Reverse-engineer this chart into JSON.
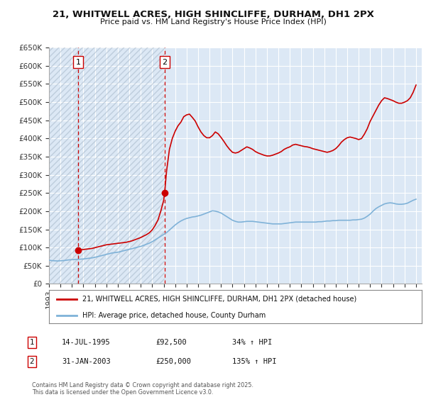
{
  "title_line1": "21, WHITWELL ACRES, HIGH SHINCLIFFE, DURHAM, DH1 2PX",
  "title_line2": "Price paid vs. HM Land Registry's House Price Index (HPI)",
  "ylim": [
    0,
    650000
  ],
  "yticks": [
    0,
    50000,
    100000,
    150000,
    200000,
    250000,
    300000,
    350000,
    400000,
    450000,
    500000,
    550000,
    600000,
    650000
  ],
  "ytick_labels": [
    "£0",
    "£50K",
    "£100K",
    "£150K",
    "£200K",
    "£250K",
    "£300K",
    "£350K",
    "£400K",
    "£450K",
    "£500K",
    "£550K",
    "£600K",
    "£650K"
  ],
  "background_color": "#ffffff",
  "plot_bg_color": "#dce8f5",
  "grid_color": "#ffffff",
  "hpi_color": "#7fb2d8",
  "price_color": "#cc0000",
  "hatch_color": "#c8d8e8",
  "sale1_date": 1995.54,
  "sale1_price": 92500,
  "sale2_date": 2003.08,
  "sale2_price": 250000,
  "legend_label1": "21, WHITWELL ACRES, HIGH SHINCLIFFE, DURHAM, DH1 2PX (detached house)",
  "legend_label2": "HPI: Average price, detached house, County Durham",
  "table_row1": [
    "1",
    "14-JUL-1995",
    "£92,500",
    "34% ↑ HPI"
  ],
  "table_row2": [
    "2",
    "31-JAN-2003",
    "£250,000",
    "135% ↑ HPI"
  ],
  "footnote": "Contains HM Land Registry data © Crown copyright and database right 2025.\nThis data is licensed under the Open Government Licence v3.0.",
  "xmin": 1993.0,
  "xmax": 2025.5,
  "hpi_data": [
    [
      1993.0,
      65000
    ],
    [
      1993.25,
      64000
    ],
    [
      1993.5,
      63500
    ],
    [
      1993.75,
      63000
    ],
    [
      1994.0,
      63500
    ],
    [
      1994.25,
      64000
    ],
    [
      1994.5,
      65000
    ],
    [
      1994.75,
      66000
    ],
    [
      1995.0,
      66500
    ],
    [
      1995.25,
      67000
    ],
    [
      1995.5,
      67500
    ],
    [
      1995.75,
      68000
    ],
    [
      1996.0,
      68500
    ],
    [
      1996.25,
      69500
    ],
    [
      1996.5,
      70500
    ],
    [
      1996.75,
      71500
    ],
    [
      1997.0,
      73000
    ],
    [
      1997.25,
      75000
    ],
    [
      1997.5,
      77000
    ],
    [
      1997.75,
      79000
    ],
    [
      1998.0,
      81000
    ],
    [
      1998.25,
      83000
    ],
    [
      1998.5,
      85000
    ],
    [
      1998.75,
      86000
    ],
    [
      1999.0,
      87000
    ],
    [
      1999.25,
      89000
    ],
    [
      1999.5,
      91000
    ],
    [
      1999.75,
      93000
    ],
    [
      2000.0,
      95000
    ],
    [
      2000.25,
      97000
    ],
    [
      2000.5,
      99000
    ],
    [
      2000.75,
      101000
    ],
    [
      2001.0,
      103000
    ],
    [
      2001.25,
      106000
    ],
    [
      2001.5,
      109000
    ],
    [
      2001.75,
      112000
    ],
    [
      2002.0,
      116000
    ],
    [
      2002.25,
      121000
    ],
    [
      2002.5,
      126000
    ],
    [
      2002.75,
      131000
    ],
    [
      2003.0,
      136000
    ],
    [
      2003.25,
      141000
    ],
    [
      2003.5,
      148000
    ],
    [
      2003.75,
      155000
    ],
    [
      2004.0,
      162000
    ],
    [
      2004.25,
      168000
    ],
    [
      2004.5,
      173000
    ],
    [
      2004.75,
      177000
    ],
    [
      2005.0,
      180000
    ],
    [
      2005.25,
      182000
    ],
    [
      2005.5,
      184000
    ],
    [
      2005.75,
      185000
    ],
    [
      2006.0,
      187000
    ],
    [
      2006.25,
      189000
    ],
    [
      2006.5,
      192000
    ],
    [
      2006.75,
      195000
    ],
    [
      2007.0,
      198000
    ],
    [
      2007.25,
      201000
    ],
    [
      2007.5,
      200000
    ],
    [
      2007.75,
      198000
    ],
    [
      2008.0,
      195000
    ],
    [
      2008.25,
      190000
    ],
    [
      2008.5,
      185000
    ],
    [
      2008.75,
      180000
    ],
    [
      2009.0,
      175000
    ],
    [
      2009.25,
      172000
    ],
    [
      2009.5,
      170000
    ],
    [
      2009.75,
      170000
    ],
    [
      2010.0,
      171000
    ],
    [
      2010.25,
      172000
    ],
    [
      2010.5,
      172000
    ],
    [
      2010.75,
      172000
    ],
    [
      2011.0,
      171000
    ],
    [
      2011.25,
      170000
    ],
    [
      2011.5,
      169000
    ],
    [
      2011.75,
      168000
    ],
    [
      2012.0,
      167000
    ],
    [
      2012.25,
      166000
    ],
    [
      2012.5,
      165000
    ],
    [
      2012.75,
      165000
    ],
    [
      2013.0,
      165000
    ],
    [
      2013.25,
      165000
    ],
    [
      2013.5,
      166000
    ],
    [
      2013.75,
      167000
    ],
    [
      2014.0,
      168000
    ],
    [
      2014.25,
      169000
    ],
    [
      2014.5,
      170000
    ],
    [
      2014.75,
      170000
    ],
    [
      2015.0,
      170000
    ],
    [
      2015.25,
      170000
    ],
    [
      2015.5,
      170000
    ],
    [
      2015.75,
      170000
    ],
    [
      2016.0,
      170000
    ],
    [
      2016.25,
      170000
    ],
    [
      2016.5,
      171000
    ],
    [
      2016.75,
      171000
    ],
    [
      2017.0,
      172000
    ],
    [
      2017.25,
      173000
    ],
    [
      2017.5,
      173000
    ],
    [
      2017.75,
      174000
    ],
    [
      2018.0,
      174000
    ],
    [
      2018.25,
      175000
    ],
    [
      2018.5,
      175000
    ],
    [
      2018.75,
      175000
    ],
    [
      2019.0,
      175000
    ],
    [
      2019.25,
      175000
    ],
    [
      2019.5,
      176000
    ],
    [
      2019.75,
      176000
    ],
    [
      2020.0,
      177000
    ],
    [
      2020.25,
      178000
    ],
    [
      2020.5,
      181000
    ],
    [
      2020.75,
      186000
    ],
    [
      2021.0,
      192000
    ],
    [
      2021.25,
      200000
    ],
    [
      2021.5,
      207000
    ],
    [
      2021.75,
      212000
    ],
    [
      2022.0,
      216000
    ],
    [
      2022.25,
      220000
    ],
    [
      2022.5,
      222000
    ],
    [
      2022.75,
      223000
    ],
    [
      2023.0,
      222000
    ],
    [
      2023.25,
      220000
    ],
    [
      2023.5,
      219000
    ],
    [
      2023.75,
      219000
    ],
    [
      2024.0,
      220000
    ],
    [
      2024.25,
      222000
    ],
    [
      2024.5,
      226000
    ],
    [
      2024.75,
      230000
    ],
    [
      2025.0,
      233000
    ]
  ],
  "price_data": [
    [
      1995.54,
      92500
    ],
    [
      1995.75,
      93500
    ],
    [
      1996.0,
      94500
    ],
    [
      1996.25,
      95500
    ],
    [
      1996.5,
      96500
    ],
    [
      1996.75,
      97500
    ],
    [
      1997.0,
      99500
    ],
    [
      1997.25,
      101500
    ],
    [
      1997.5,
      103500
    ],
    [
      1997.75,
      105500
    ],
    [
      1998.0,
      107500
    ],
    [
      1998.25,
      108500
    ],
    [
      1998.5,
      109500
    ],
    [
      1998.75,
      110500
    ],
    [
      1999.0,
      111500
    ],
    [
      1999.25,
      112500
    ],
    [
      1999.5,
      113500
    ],
    [
      1999.75,
      114500
    ],
    [
      2000.0,
      116500
    ],
    [
      2000.25,
      118500
    ],
    [
      2000.5,
      121500
    ],
    [
      2000.75,
      124500
    ],
    [
      2001.0,
      127500
    ],
    [
      2001.25,
      131500
    ],
    [
      2001.5,
      135500
    ],
    [
      2001.75,
      140500
    ],
    [
      2002.0,
      148500
    ],
    [
      2002.25,
      160500
    ],
    [
      2002.5,
      175500
    ],
    [
      2002.75,
      200500
    ],
    [
      2003.0,
      230000
    ],
    [
      2003.08,
      250000
    ],
    [
      2003.25,
      310000
    ],
    [
      2003.5,
      370000
    ],
    [
      2003.75,
      400000
    ],
    [
      2004.0,
      420000
    ],
    [
      2004.25,
      435000
    ],
    [
      2004.5,
      445000
    ],
    [
      2004.75,
      460000
    ],
    [
      2005.0,
      465000
    ],
    [
      2005.25,
      467000
    ],
    [
      2005.5,
      458000
    ],
    [
      2005.75,
      448000
    ],
    [
      2006.0,
      432000
    ],
    [
      2006.25,
      418000
    ],
    [
      2006.5,
      408000
    ],
    [
      2006.75,
      402000
    ],
    [
      2007.0,
      402000
    ],
    [
      2007.25,
      408000
    ],
    [
      2007.5,
      418000
    ],
    [
      2007.75,
      413000
    ],
    [
      2008.0,
      403000
    ],
    [
      2008.25,
      392000
    ],
    [
      2008.5,
      380000
    ],
    [
      2008.75,
      370000
    ],
    [
      2009.0,
      362000
    ],
    [
      2009.25,
      360000
    ],
    [
      2009.5,
      362000
    ],
    [
      2009.75,
      367000
    ],
    [
      2010.0,
      372000
    ],
    [
      2010.25,
      377000
    ],
    [
      2010.5,
      374000
    ],
    [
      2010.75,
      370000
    ],
    [
      2011.0,
      364000
    ],
    [
      2011.25,
      360000
    ],
    [
      2011.5,
      357000
    ],
    [
      2011.75,
      354000
    ],
    [
      2012.0,
      352000
    ],
    [
      2012.25,
      352000
    ],
    [
      2012.5,
      354000
    ],
    [
      2012.75,
      357000
    ],
    [
      2013.0,
      360000
    ],
    [
      2013.25,
      364000
    ],
    [
      2013.5,
      370000
    ],
    [
      2013.75,
      374000
    ],
    [
      2014.0,
      377000
    ],
    [
      2014.25,
      382000
    ],
    [
      2014.5,
      384000
    ],
    [
      2014.75,
      382000
    ],
    [
      2015.0,
      380000
    ],
    [
      2015.25,
      378000
    ],
    [
      2015.5,
      377000
    ],
    [
      2015.75,
      375000
    ],
    [
      2016.0,
      372000
    ],
    [
      2016.25,
      370000
    ],
    [
      2016.5,
      368000
    ],
    [
      2016.75,
      366000
    ],
    [
      2017.0,
      364000
    ],
    [
      2017.25,
      362000
    ],
    [
      2017.5,
      364000
    ],
    [
      2017.75,
      367000
    ],
    [
      2018.0,
      372000
    ],
    [
      2018.25,
      380000
    ],
    [
      2018.5,
      390000
    ],
    [
      2018.75,
      397000
    ],
    [
      2019.0,
      402000
    ],
    [
      2019.25,
      404000
    ],
    [
      2019.5,
      402000
    ],
    [
      2019.75,
      400000
    ],
    [
      2020.0,
      397000
    ],
    [
      2020.25,
      400000
    ],
    [
      2020.5,
      412000
    ],
    [
      2020.75,
      427000
    ],
    [
      2021.0,
      447000
    ],
    [
      2021.25,
      462000
    ],
    [
      2021.5,
      477000
    ],
    [
      2021.75,
      492000
    ],
    [
      2022.0,
      504000
    ],
    [
      2022.25,
      512000
    ],
    [
      2022.5,
      510000
    ],
    [
      2022.75,
      507000
    ],
    [
      2023.0,
      504000
    ],
    [
      2023.25,
      500000
    ],
    [
      2023.5,
      497000
    ],
    [
      2023.75,
      497000
    ],
    [
      2024.0,
      500000
    ],
    [
      2024.25,
      504000
    ],
    [
      2024.5,
      512000
    ],
    [
      2024.75,
      527000
    ],
    [
      2025.0,
      547000
    ]
  ]
}
